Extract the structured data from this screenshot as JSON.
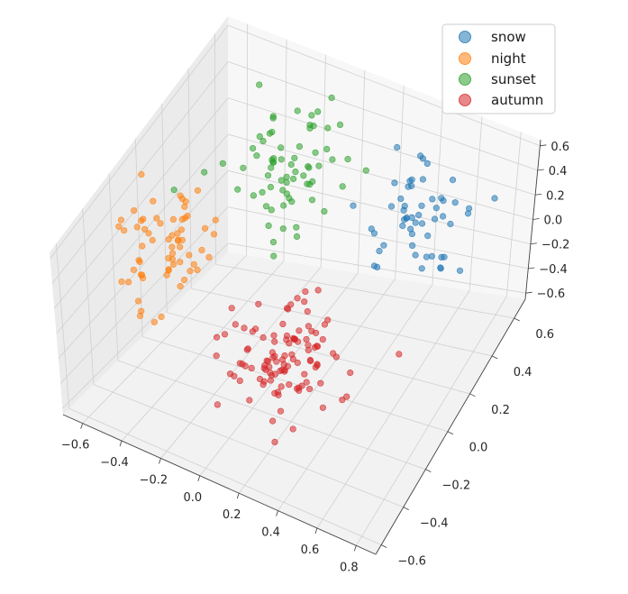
{
  "chart_data": {
    "type": "scatter",
    "projection": "3d",
    "title": "",
    "xlabel": "",
    "ylabel": "",
    "zlabel": "",
    "xlim": [
      -0.7,
      0.9
    ],
    "ylim": [
      -0.65,
      0.7
    ],
    "zlim": [
      -0.65,
      0.65
    ],
    "x_ticks": [
      "−0.6",
      "−0.4",
      "−0.2",
      "0.0",
      "0.2",
      "0.4",
      "0.6",
      "0.8"
    ],
    "y_ticks": [
      "−0.6",
      "−0.4",
      "−0.2",
      "0.0",
      "0.2",
      "0.4",
      "0.6"
    ],
    "z_ticks": [
      "−0.6",
      "−0.4",
      "−0.2",
      "0.0",
      "0.2",
      "0.4",
      "0.6"
    ],
    "x_tick_values": [
      -0.6,
      -0.4,
      -0.2,
      0.0,
      0.2,
      0.4,
      0.6,
      0.8
    ],
    "y_tick_values": [
      -0.6,
      -0.4,
      -0.2,
      0.0,
      0.2,
      0.4,
      0.6
    ],
    "z_tick_values": [
      -0.6,
      -0.4,
      -0.2,
      0.0,
      0.2,
      0.4,
      0.6
    ],
    "grid": true,
    "legend_position": "top-right",
    "marker_opacity": 0.55,
    "series": [
      {
        "name": "snow",
        "color": "#1f77b4",
        "cluster": {
          "center": [
            0.45,
            0.45,
            0.2
          ],
          "spread": [
            0.13,
            0.12,
            0.17
          ],
          "count": 55
        }
      },
      {
        "name": "night",
        "color": "#ff7f0e",
        "cluster": {
          "center": [
            -0.5,
            -0.1,
            0.15
          ],
          "spread": [
            0.1,
            0.12,
            0.18
          ],
          "count": 65
        }
      },
      {
        "name": "sunset",
        "color": "#2ca02c",
        "cluster": {
          "center": [
            -0.15,
            0.35,
            0.35
          ],
          "spread": [
            0.14,
            0.12,
            0.18
          ],
          "count": 70
        }
      },
      {
        "name": "autumn",
        "color": "#d62728",
        "cluster": {
          "center": [
            0.1,
            -0.1,
            -0.35
          ],
          "spread": [
            0.14,
            0.14,
            0.16
          ],
          "count": 110
        }
      }
    ]
  }
}
